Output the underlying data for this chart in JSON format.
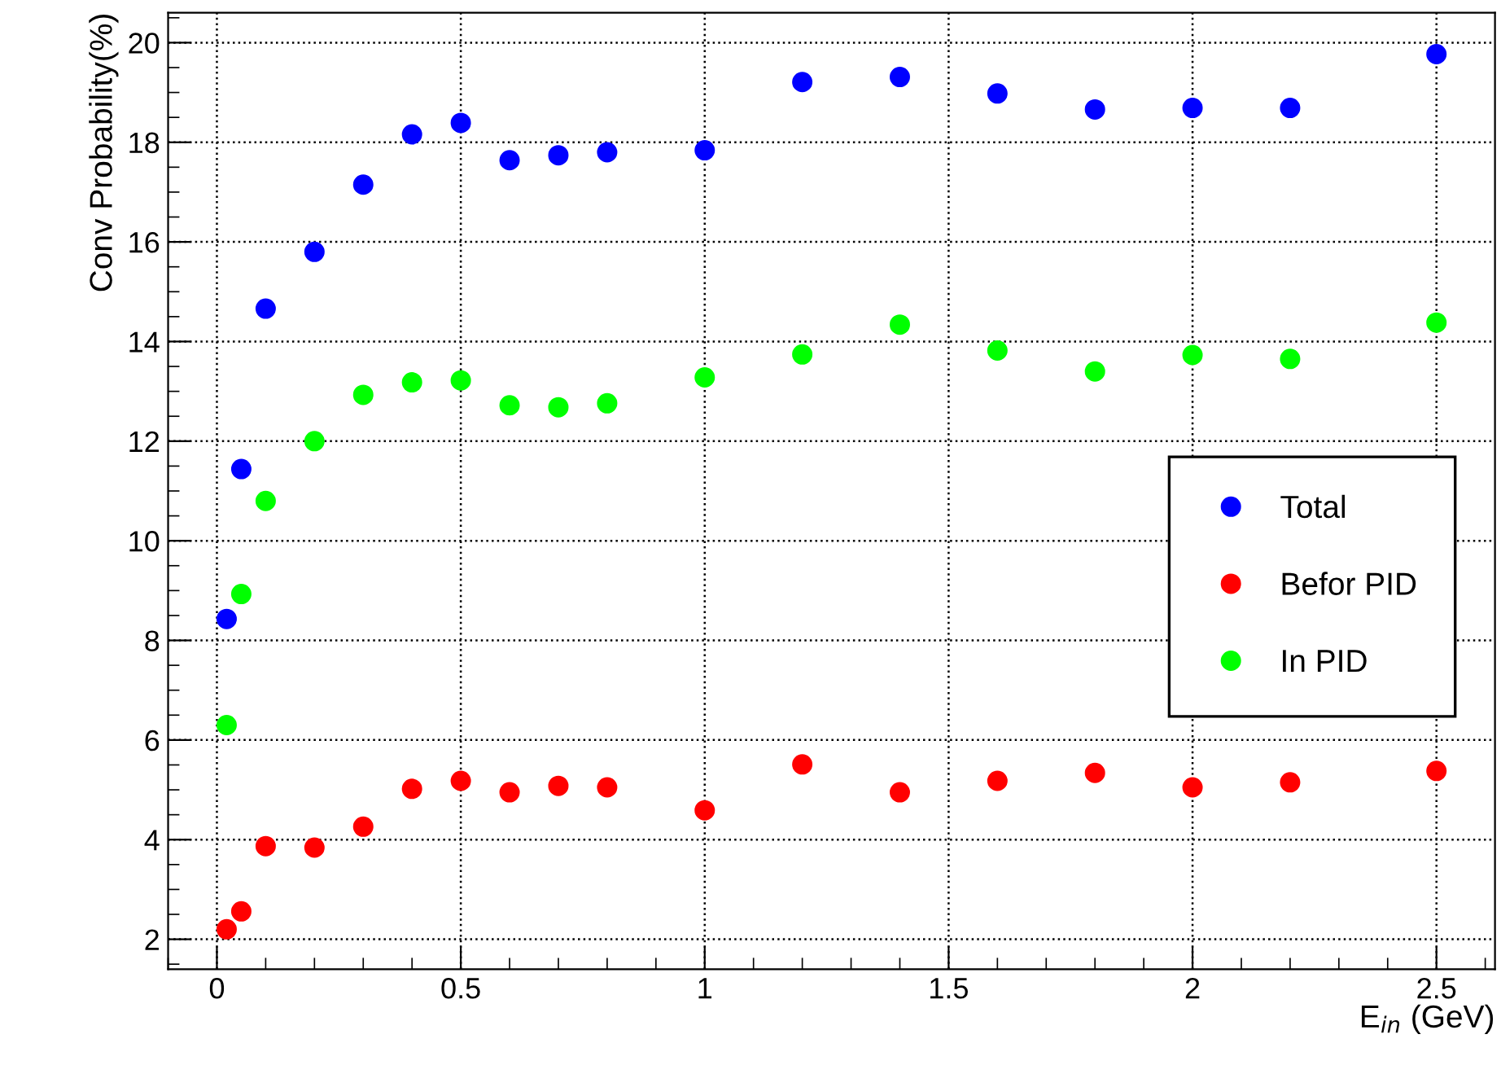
{
  "chart_data": {
    "type": "scatter",
    "xlabel": "E$_{in}$ (GeV)",
    "ylabel": "Conv Probability(%)",
    "x": [
      0.02,
      0.05,
      0.1,
      0.2,
      0.3,
      0.4,
      0.5,
      0.6,
      0.7,
      0.8,
      1.0,
      1.2,
      1.4,
      1.6,
      1.8,
      2.0,
      2.2,
      2.5
    ],
    "series": [
      {
        "name": "Total",
        "color": "#0000ff",
        "values": [
          8.43,
          11.44,
          14.66,
          15.8,
          17.15,
          18.16,
          18.39,
          17.64,
          17.74,
          17.8,
          17.84,
          19.21,
          19.31,
          18.98,
          18.66,
          18.69,
          18.69,
          19.77
        ]
      },
      {
        "name": "Befor PID",
        "color": "#ff0000",
        "values": [
          2.2,
          2.56,
          3.87,
          3.84,
          4.26,
          5.02,
          5.18,
          4.95,
          5.08,
          5.05,
          4.59,
          5.51,
          4.95,
          5.18,
          5.34,
          5.05,
          5.15,
          5.38
        ]
      },
      {
        "name": "In PID",
        "color": "#00ff00",
        "values": [
          6.3,
          8.93,
          10.8,
          12.0,
          12.93,
          13.18,
          13.22,
          12.72,
          12.68,
          12.76,
          13.28,
          13.74,
          14.34,
          13.82,
          13.4,
          13.73,
          13.65,
          14.38
        ]
      }
    ],
    "xlim": [
      -0.1,
      2.62
    ],
    "ylim": [
      1.4,
      20.6
    ],
    "xticks": [
      0,
      0.5,
      1,
      1.5,
      2,
      2.5
    ],
    "yticks": [
      2,
      4,
      6,
      8,
      10,
      12,
      14,
      16,
      18,
      20
    ],
    "grid": true,
    "legend": "center right",
    "marker": "circle"
  }
}
